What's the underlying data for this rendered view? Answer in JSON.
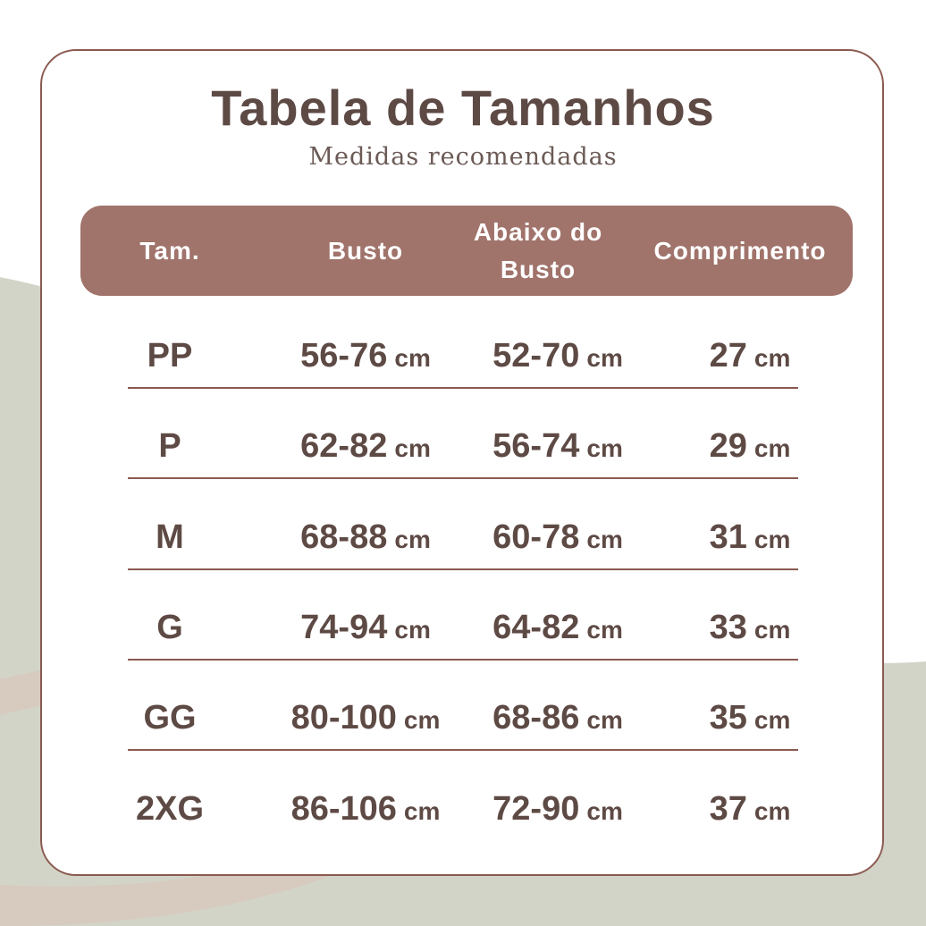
{
  "title": "Tabela de Tamanhos",
  "subtitle": "Medidas recomendadas",
  "colors": {
    "header_bg": "#a0736b",
    "text": "#5e4a45",
    "border": "#8a5a50",
    "bg_shape": "#d3d4c8",
    "bg_swoosh": "#d8c7bd"
  },
  "table": {
    "headers": [
      "Tam.",
      "Busto",
      "Abaixo do\nBusto",
      "Comprimento"
    ],
    "unit": "cm",
    "rows": [
      {
        "size": "PP",
        "busto": "56-76",
        "abaixo": "52-70",
        "comprimento": "27"
      },
      {
        "size": "P",
        "busto": "62-82",
        "abaixo": "56-74",
        "comprimento": "29"
      },
      {
        "size": "M",
        "busto": "68-88",
        "abaixo": "60-78",
        "comprimento": "31"
      },
      {
        "size": "G",
        "busto": "74-94",
        "abaixo": "64-82",
        "comprimento": "33"
      },
      {
        "size": "GG",
        "busto": "80-100",
        "abaixo": "68-86",
        "comprimento": "35"
      },
      {
        "size": "2XG",
        "busto": "86-106",
        "abaixo": "72-90",
        "comprimento": "37"
      }
    ]
  }
}
